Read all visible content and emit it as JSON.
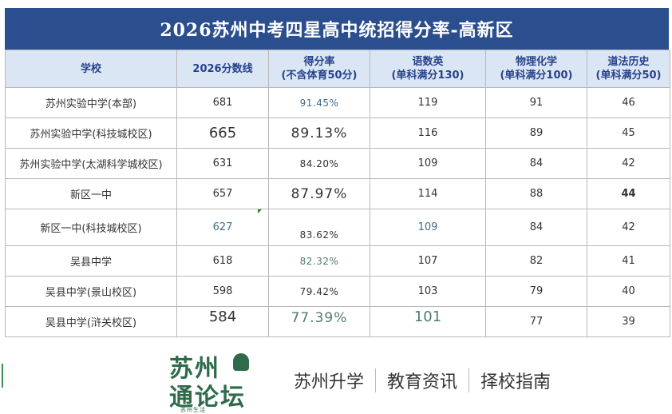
{
  "title": "2026苏州中考四星高中统招得分率-高新区",
  "headers": [
    {
      "line1": "学校",
      "line2": ""
    },
    {
      "line1": "2026分数线",
      "line2": ""
    },
    {
      "line1": "得分率",
      "line2": "(不含体育50分)"
    },
    {
      "line1": "语数英",
      "line2": "(单科满分130)"
    },
    {
      "line1": "物理化学",
      "line2": "(单科满分100)"
    },
    {
      "line1": "道法历史",
      "line2": "(单科满分50)"
    }
  ],
  "rows": [
    {
      "school": "苏州实验中学(本部)",
      "score": "681",
      "rate": "91.45%",
      "chinese_math_english": "119",
      "physics_chemistry": "91",
      "politics_history": "46"
    },
    {
      "school": "苏州实验中学(科技城校区)",
      "score": "665",
      "rate": "89.13%",
      "chinese_math_english": "116",
      "physics_chemistry": "89",
      "politics_history": "45"
    },
    {
      "school": "苏州实验中学(太湖科学城校区)",
      "score": "631",
      "rate": "84.20%",
      "chinese_math_english": "109",
      "physics_chemistry": "84",
      "politics_history": "42"
    },
    {
      "school": "新区一中",
      "score": "657",
      "rate": "87.97%",
      "chinese_math_english": "114",
      "physics_chemistry": "88",
      "politics_history": "44"
    },
    {
      "school": "新区一中(科技城校区)",
      "score": "627",
      "rate": "83.62%",
      "chinese_math_english": "109",
      "physics_chemistry": "84",
      "politics_history": "42"
    },
    {
      "school": "吴县中学",
      "score": "618",
      "rate": "82.32%",
      "chinese_math_english": "107",
      "physics_chemistry": "82",
      "politics_history": "41"
    },
    {
      "school": "吴县中学(景山校区)",
      "score": "598",
      "rate": "79.42%",
      "chinese_math_english": "103",
      "physics_chemistry": "79",
      "politics_history": "40"
    },
    {
      "school": "吴县中学(浒关校区)",
      "score": "584",
      "rate": "77.39%",
      "chinese_math_english": "101",
      "physics_chemistry": "77",
      "politics_history": "39"
    }
  ],
  "footer": {
    "logo_line1": "苏州",
    "logo_line2": "通论坛",
    "logo_small": "苏州生活",
    "tagline": [
      "苏州升学",
      "教育资讯",
      "择校指南"
    ]
  },
  "colors": {
    "title_bg": "#2b4f8e",
    "header_bg": "#dbe6f5",
    "header_text": "#27428a",
    "logo_green": "#2f6b4a"
  }
}
